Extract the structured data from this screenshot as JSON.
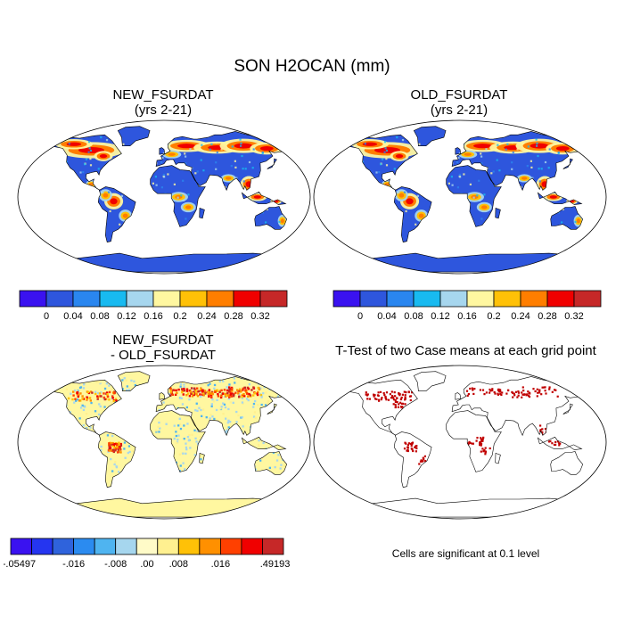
{
  "figure": {
    "title": "SON H2OCAN (mm)"
  },
  "panels": [
    {
      "id": "new",
      "title_line1": "NEW_FSURDAT",
      "title_line2": "(yrs 2-21)"
    },
    {
      "id": "old",
      "title_line1": "OLD_FSURDAT",
      "title_line2": "(yrs 2-21)"
    },
    {
      "id": "diff",
      "title_line1": "NEW_FSURDAT",
      "title_line2": "- OLD_FSURDAT"
    },
    {
      "id": "ttest",
      "title_line1": "T-Test of two Case means at each grid point",
      "note": "Cells are significant at 0.1 level"
    }
  ],
  "colorbars": {
    "absolute": {
      "colors": [
        "#3a12f0",
        "#2e56dd",
        "#2a86ef",
        "#18baf0",
        "#a6d6ee",
        "#fff7a0",
        "#ffc107",
        "#ff7e00",
        "#f00000",
        "#c62828"
      ],
      "labels": [
        "0",
        "0.04",
        "0.08",
        "0.12",
        "0.16",
        "0.2",
        "0.24",
        "0.28",
        "0.32"
      ]
    },
    "difference": {
      "colors": [
        "#3a12f0",
        "#2535f0",
        "#2f63dc",
        "#2b8bf0",
        "#4fb4f0",
        "#a6d6ee",
        "#fffbc8",
        "#fff090",
        "#ffc107",
        "#ff9000",
        "#ff4000",
        "#f00000",
        "#c62828"
      ],
      "labels": [
        "-.05497",
        "-.016",
        "-.008",
        ".00",
        ".008",
        ".016",
        ".49193"
      ]
    }
  },
  "colors": {
    "land_low_abs": "#2e56dd",
    "land_low_diff": "#fff7a0",
    "significant": "#c00000",
    "coast": "#000000"
  }
}
